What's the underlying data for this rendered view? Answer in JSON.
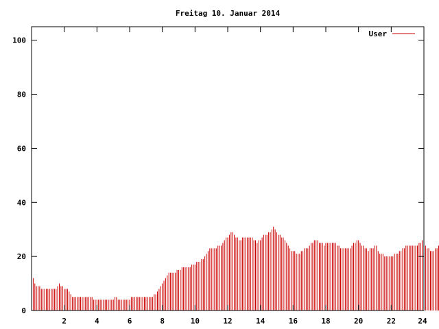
{
  "chart_data": {
    "type": "bar",
    "title": "Freitag 10. Januar 2014",
    "xlabel": "",
    "ylabel": "",
    "xlim": [
      0,
      24
    ],
    "ylim": [
      0,
      105
    ],
    "x_ticks": [
      2,
      4,
      6,
      8,
      10,
      12,
      14,
      16,
      18,
      20,
      22,
      24
    ],
    "y_ticks": [
      0,
      20,
      40,
      60,
      80,
      100
    ],
    "grid": false,
    "legend_position": "top-right",
    "bar_color": "#cc0000",
    "bar_step_hours": 0.1,
    "series": [
      {
        "name": "User",
        "color": "#cc0000",
        "values": [
          13,
          12,
          10,
          9,
          9,
          9,
          8,
          8,
          8,
          8,
          8,
          8,
          8,
          8,
          8,
          8,
          9,
          10,
          9,
          9,
          8,
          8,
          8,
          7,
          6,
          5,
          5,
          5,
          5,
          5,
          5,
          5,
          5,
          5,
          5,
          5,
          5,
          5,
          4,
          4,
          4,
          4,
          4,
          4,
          4,
          4,
          4,
          4,
          4,
          4,
          4,
          5,
          5,
          4,
          4,
          4,
          4,
          4,
          4,
          4,
          4,
          5,
          5,
          5,
          5,
          5,
          5,
          5,
          5,
          5,
          5,
          5,
          5,
          5,
          5,
          6,
          6,
          7,
          8,
          9,
          10,
          11,
          12,
          13,
          14,
          14,
          14,
          14,
          14,
          15,
          15,
          15,
          16,
          16,
          16,
          16,
          16,
          16,
          17,
          17,
          17,
          18,
          18,
          18,
          19,
          19,
          20,
          21,
          22,
          23,
          23,
          23,
          23,
          23,
          24,
          24,
          24,
          25,
          26,
          27,
          27,
          28,
          29,
          29,
          28,
          27,
          27,
          26,
          26,
          27,
          27,
          27,
          27,
          27,
          27,
          27,
          26,
          26,
          25,
          26,
          26,
          27,
          28,
          28,
          28,
          29,
          29,
          30,
          31,
          30,
          29,
          28,
          28,
          27,
          27,
          26,
          25,
          24,
          23,
          22,
          22,
          22,
          21,
          21,
          21,
          22,
          22,
          23,
          23,
          23,
          24,
          25,
          25,
          26,
          26,
          26,
          25,
          25,
          25,
          24,
          25,
          25,
          25,
          25,
          25,
          25,
          25,
          24,
          24,
          23,
          23,
          23,
          23,
          23,
          23,
          23,
          24,
          25,
          25,
          26,
          26,
          25,
          24,
          24,
          23,
          23,
          22,
          23,
          23,
          23,
          24,
          24,
          22,
          21,
          21,
          21,
          20,
          20,
          20,
          20,
          20,
          20,
          21,
          21,
          21,
          22,
          22,
          23,
          23,
          24,
          24,
          24,
          24,
          24,
          24,
          24,
          24,
          25,
          25,
          26,
          25,
          24,
          23,
          23,
          22,
          22,
          22,
          23,
          23,
          24,
          24,
          25,
          25,
          25,
          25,
          24,
          23,
          22,
          21,
          21,
          21
        ]
      }
    ]
  }
}
